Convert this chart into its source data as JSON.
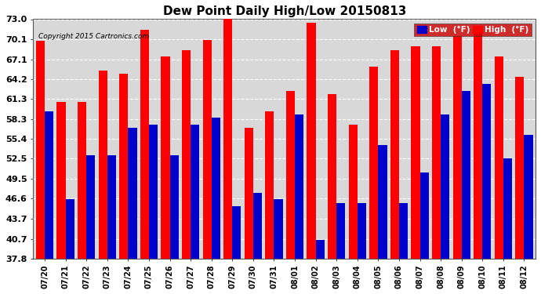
{
  "title": "Dew Point Daily High/Low 20150813",
  "copyright": "Copyright 2015 Cartronics.com",
  "dates": [
    "07/20",
    "07/21",
    "07/22",
    "07/23",
    "07/24",
    "07/25",
    "07/26",
    "07/27",
    "07/28",
    "07/29",
    "07/30",
    "07/31",
    "08/01",
    "08/02",
    "08/03",
    "08/04",
    "08/05",
    "08/06",
    "08/07",
    "08/08",
    "08/09",
    "08/10",
    "08/11",
    "08/12"
  ],
  "high": [
    69.8,
    60.8,
    60.8,
    65.5,
    65.0,
    71.5,
    67.5,
    68.5,
    70.0,
    73.5,
    57.0,
    59.5,
    62.5,
    72.5,
    62.0,
    57.5,
    66.0,
    68.5,
    69.0,
    69.0,
    70.5,
    71.0,
    67.5,
    64.5
  ],
  "low": [
    59.5,
    46.5,
    53.0,
    53.0,
    57.0,
    57.5,
    53.0,
    57.5,
    58.5,
    45.5,
    47.5,
    46.5,
    59.0,
    40.5,
    46.0,
    46.0,
    54.5,
    46.0,
    50.5,
    59.0,
    62.5,
    63.5,
    52.5,
    56.0
  ],
  "yticks": [
    37.8,
    40.7,
    43.7,
    46.6,
    49.5,
    52.5,
    55.4,
    58.3,
    61.3,
    64.2,
    67.1,
    70.1,
    73.0
  ],
  "ymin": 37.8,
  "ymax": 73.0,
  "high_color": "#ff0000",
  "low_color": "#0000cc",
  "bg_color": "#ffffff",
  "plot_bg_color": "#d8d8d8",
  "grid_color": "#ffffff",
  "title_fontsize": 11,
  "bar_width": 0.42
}
